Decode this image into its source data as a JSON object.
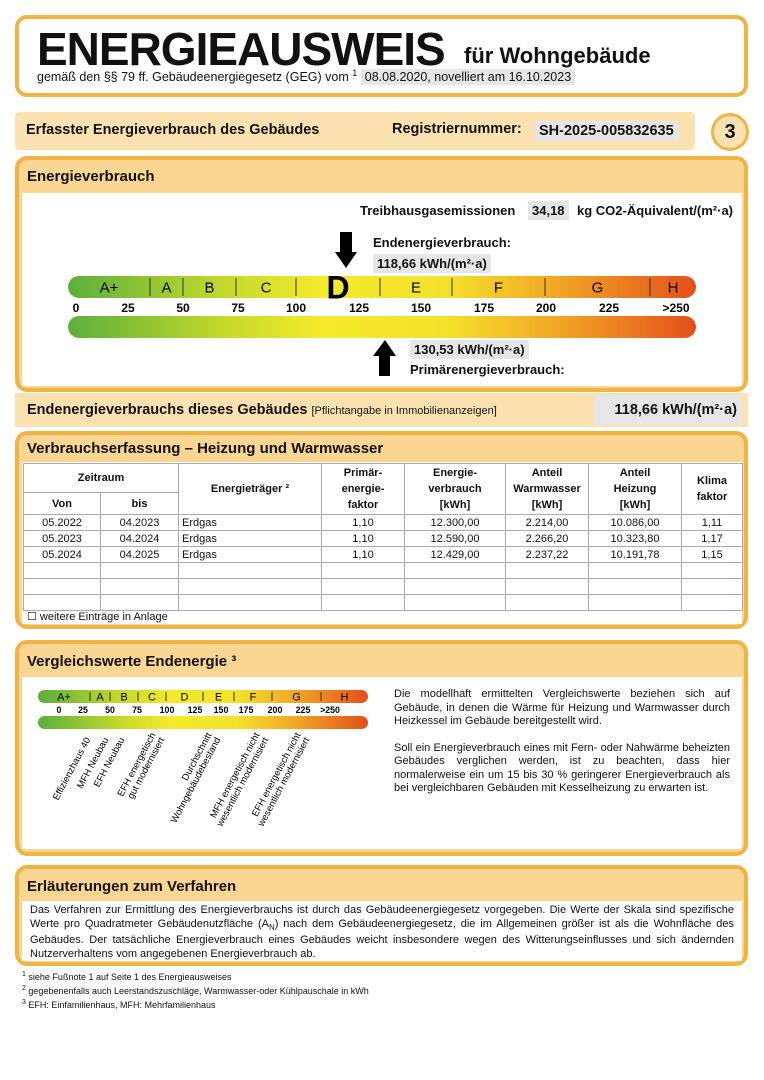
{
  "header": {
    "title": "ENERGIEAUSWEIS",
    "subtitle": "für Wohngebäude",
    "law": "gemäß den §§ 79 ff. Gebäudeenergiegesetz (GEG) vom",
    "law_footnote": "1",
    "date": "08.08.2020, novelliert am 16.10.2023"
  },
  "bar": {
    "label": "Erfasster Energieverbrauch des Gebäudes",
    "reg_label": "Registriernummer:",
    "reg_number": "SH-2025-005832635",
    "page": "3"
  },
  "energy": {
    "heading": "Energieverbrauch",
    "ghg_label": "Treibhausgasemissionen",
    "ghg_value": "34,18",
    "ghg_unit": "kg CO2-Äquivalent/(m²·a)",
    "end_label": "Endenergieverbrauch:",
    "end_value": "118,66 kWh/(m²·a)",
    "classes": [
      "A+",
      "A",
      "B",
      "C",
      "D",
      "E",
      "F",
      "G",
      "H"
    ],
    "scale": [
      "0",
      "25",
      "50",
      "75",
      "100",
      "125",
      "150",
      "175",
      "200",
      "225",
      ">250"
    ],
    "primary_value": "130,53 kWh/(m²·a)",
    "primary_label": "Primärenergieverbrauch:"
  },
  "summary": {
    "label": "Endenergieverbrauchs dieses Gebäudes",
    "note": "[Pflichtangabe in Immobilienanzeigen]",
    "value": "118,66 kWh/(m²·a)"
  },
  "consumption": {
    "heading": "Verbrauchserfassung – Heizung und Warmwasser",
    "period": "Zeitraum",
    "from": "Von",
    "to": "bis",
    "columns": [
      [
        "Energieträger ²"
      ],
      [
        "Primär-",
        "energie-",
        "faktor"
      ],
      [
        "Energie-",
        "verbrauch",
        "[kWh]"
      ],
      [
        "Anteil",
        "Warmwasser",
        "[kWh]"
      ],
      [
        "Anteil",
        "Heizung",
        "[kWh]"
      ],
      [
        "Klima",
        "faktor"
      ]
    ],
    "rows": [
      [
        "05.2022",
        "04.2023",
        "Erdgas",
        "1,10",
        "12.300,00",
        "2.214,00",
        "10.086,00",
        "1,11"
      ],
      [
        "05.2023",
        "04.2024",
        "Erdgas",
        "1,10",
        "12.590,00",
        "2.266,20",
        "10.323,80",
        "1,17"
      ],
      [
        "05.2024",
        "04.2025",
        "Erdgas",
        "1,10",
        "12.429,00",
        "2.237,22",
        "10.191,78",
        "1,15"
      ]
    ],
    "more": "☐ weitere Einträge in Anlage"
  },
  "comparison": {
    "heading": "Vergleichswerte Endenergie ³",
    "labels": [
      [
        "Effizienzhaus 40"
      ],
      [
        "MFH Neubau"
      ],
      [
        "EFH Neubau"
      ],
      [
        "EFH energetisch",
        "gut modernisiert"
      ],
      [
        "Durchschnitt",
        "Wohngebäudebestand"
      ],
      [
        "MFH energetisch nicht",
        "wesentlich modernisiert"
      ],
      [
        "EFH energetisch nicht",
        "wesentlich modernisiert"
      ]
    ],
    "paragraphs": [
      "Die modellhaft ermittelten Vergleichswerte beziehen sich auf Gebäude, in denen die Wärme für Heizung und Warmwasser durch Heizkessel im Gebäude bereitgestellt wird.",
      "Soll ein Energieverbrauch eines mit Fern- oder Nahwärme beheizten Gebäudes verglichen werden, ist zu beachten, dass hier normalerweise ein um 15 bis 30 % geringerer Energieverbrauch als bei vergleichbaren Gebäuden mit Kesselheizung zu erwarten ist."
    ]
  },
  "explanation": {
    "heading": "Erläuterungen zum Verfahren",
    "text_before": "Das Verfahren zur Ermittlung des Energieverbrauchs ist durch das Gebäudeenergiegesetz vorgegeben. Die Werte der Skala sind spezifische Werte pro Quadratmeter Gebäudenutzfläche (A",
    "text_sub": "N",
    "text_after": ") nach dem Gebäudeenergiegesetz, die im Allgemeinen größer ist als die Wohnfläche des Gebäudes. Der tatsächliche Energieverbrauch eines Gebäudes weicht insbesondere wegen des Witterungseinflusses und sich ändernden Nutzerverhaltens vom angegebenen Energieverbrauch ab."
  },
  "footnotes": [
    {
      "mark": "1",
      "text": "siehe Fußnote 1 auf Seite 1 des Energieausweises"
    },
    {
      "mark": "2",
      "text": "gegebenenfalls auch Leerstandszuschläge, Warmwasser-oder Kühlpauschale in kWh"
    },
    {
      "mark": "3",
      "text": "EFH: Einfamilienhaus, MFH: Mehrfamilienhaus"
    }
  ]
}
